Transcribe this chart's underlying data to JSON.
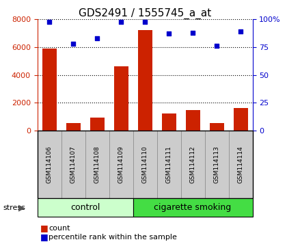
{
  "title": "GDS2491 / 1555745_a_at",
  "samples": [
    "GSM114106",
    "GSM114107",
    "GSM114108",
    "GSM114109",
    "GSM114110",
    "GSM114111",
    "GSM114112",
    "GSM114113",
    "GSM114114"
  ],
  "counts": [
    5900,
    550,
    950,
    4650,
    7250,
    1250,
    1500,
    550,
    1650
  ],
  "percentiles": [
    98,
    78,
    83,
    98,
    98,
    87,
    88,
    76,
    89
  ],
  "ylim_left": [
    0,
    8000
  ],
  "ylim_right": [
    0,
    100
  ],
  "yticks_left": [
    0,
    2000,
    4000,
    6000,
    8000
  ],
  "yticks_right": [
    0,
    25,
    50,
    75,
    100
  ],
  "bar_color": "#cc2200",
  "dot_color": "#0000cc",
  "label_bg_color": "#cccccc",
  "group1_label": "control",
  "group2_label": "cigarette smoking",
  "group1_count": 4,
  "stress_label": "stress",
  "legend_count_label": "count",
  "legend_pct_label": "percentile rank within the sample",
  "control_bg": "#ccffcc",
  "smoking_bg": "#44dd44",
  "title_fontsize": 11,
  "tick_fontsize": 8,
  "sample_fontsize": 6.5,
  "group_fontsize": 9,
  "legend_fontsize": 8
}
